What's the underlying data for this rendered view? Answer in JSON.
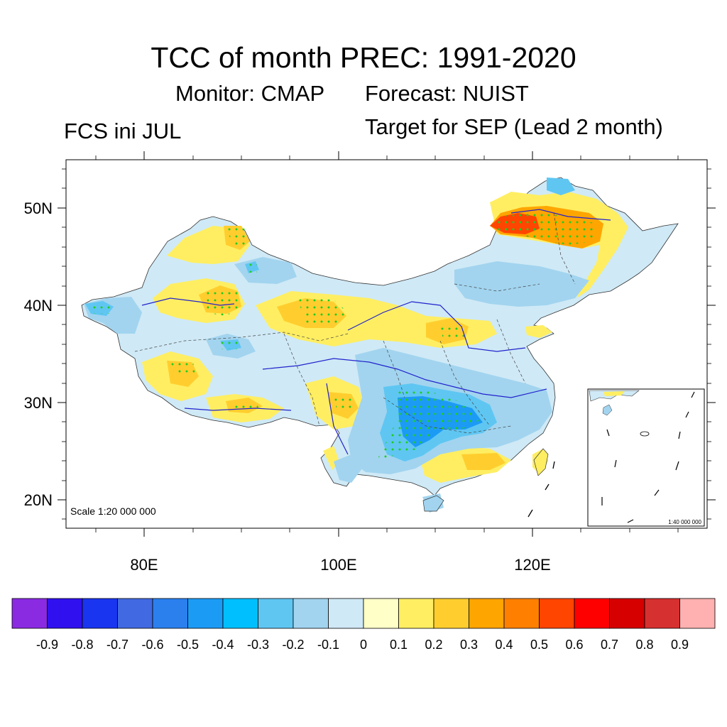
{
  "title": "TCC of month PREC: 1991-2020",
  "monitor_label": "Monitor: CMAP",
  "forecast_label": "Forecast: NUIST",
  "left_label": "FCS ini JUL",
  "target_label": "Target for SEP (Lead 2 month)",
  "scale_text": "Scale 1:20 000 000",
  "inset_scale_text": "1:40 000 000",
  "axes": {
    "lat_labels": [
      "50N",
      "40N",
      "30N",
      "20N"
    ],
    "lon_labels": [
      "80E",
      "100E",
      "120E"
    ]
  },
  "colorbar": {
    "colors": [
      "#8a2be2",
      "#3010ee",
      "#1a35f0",
      "#4169e1",
      "#2b80ee",
      "#1c9bf5",
      "#00bfff",
      "#5fc6f2",
      "#a2d4ef",
      "#cfe9f6",
      "#ffffc8",
      "#ffee62",
      "#ffce2e",
      "#ffa500",
      "#ff8000",
      "#ff4500",
      "#ff0000",
      "#d60000",
      "#d63030",
      "#ffb0b0"
    ],
    "tick_labels": [
      "-0.9",
      "-0.8",
      "-0.7",
      "-0.6",
      "-0.5",
      "-0.4",
      "-0.3",
      "-0.2",
      "-0.1",
      "0",
      "0.1",
      "0.2",
      "0.3",
      "0.4",
      "0.5",
      "0.6",
      "0.7",
      "0.8",
      "0.9"
    ]
  },
  "significance_marker_color": "#22cc22"
}
